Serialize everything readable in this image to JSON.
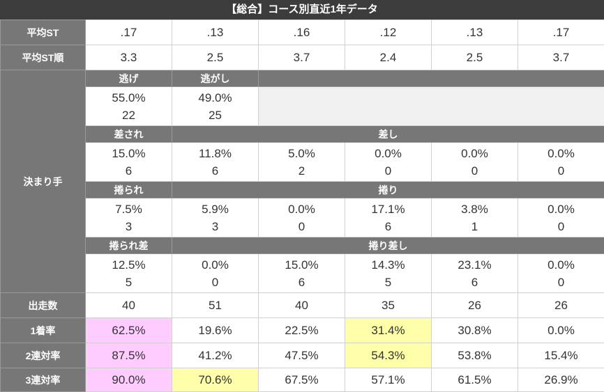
{
  "title": "【総合】コース別直近1年データ",
  "top_rows": [
    {
      "label": "平均ST",
      "values": [
        ".17",
        ".13",
        ".16",
        ".12",
        ".13",
        ".17"
      ]
    },
    {
      "label": "平均ST順",
      "values": [
        "3.3",
        "2.5",
        "3.7",
        "2.4",
        "2.5",
        "3.7"
      ]
    }
  ],
  "kimarite": {
    "label": "決まり手",
    "groups": [
      {
        "headers": [
          {
            "text": "逃げ",
            "span": 1
          },
          {
            "text": "逃がし",
            "span": 1
          }
        ],
        "cells": [
          [
            "55.0%",
            "22"
          ],
          [
            "49.0%",
            "25"
          ]
        ]
      },
      {
        "headers": [
          {
            "text": "差され",
            "span": 1
          },
          {
            "text": "差し",
            "span": 5
          }
        ],
        "cells": [
          [
            "15.0%",
            "6"
          ],
          [
            "11.8%",
            "6"
          ],
          [
            "5.0%",
            "2"
          ],
          [
            "0.0%",
            "0"
          ],
          [
            "0.0%",
            "0"
          ],
          [
            "0.0%",
            "0"
          ]
        ]
      },
      {
        "headers": [
          {
            "text": "捲られ",
            "span": 1
          },
          {
            "text": "捲り",
            "span": 5
          }
        ],
        "cells": [
          [
            "7.5%",
            "3"
          ],
          [
            "5.9%",
            "3"
          ],
          [
            "0.0%",
            "0"
          ],
          [
            "17.1%",
            "6"
          ],
          [
            "3.8%",
            "1"
          ],
          [
            "0.0%",
            "0"
          ]
        ]
      },
      {
        "headers": [
          {
            "text": "捲られ差",
            "span": 1
          },
          {
            "text": "捲り差し",
            "span": 5
          }
        ],
        "cells": [
          [
            "12.5%",
            "5"
          ],
          [
            "0.0%",
            "0"
          ],
          [
            "15.0%",
            "6"
          ],
          [
            "14.3%",
            "5"
          ],
          [
            "23.1%",
            "6"
          ],
          [
            "0.0%",
            "0"
          ]
        ]
      }
    ]
  },
  "bottom_rows": [
    {
      "label": "出走数",
      "values": [
        "40",
        "51",
        "40",
        "35",
        "26",
        "26"
      ]
    },
    {
      "label": "1着率",
      "values": [
        "62.5%",
        "19.6%",
        "22.5%",
        "31.4%",
        "30.8%",
        "0.0%"
      ],
      "highlight": [
        {
          "index": 0,
          "color": "#ffccff"
        },
        {
          "index": 3,
          "color": "#ffffaa"
        }
      ]
    },
    {
      "label": "2連対率",
      "values": [
        "87.5%",
        "41.2%",
        "47.5%",
        "54.3%",
        "53.8%",
        "15.4%"
      ],
      "highlight": [
        {
          "index": 0,
          "color": "#ffccff"
        },
        {
          "index": 3,
          "color": "#ffffaa"
        }
      ]
    },
    {
      "label": "3連対率",
      "values": [
        "90.0%",
        "70.6%",
        "67.5%",
        "57.1%",
        "61.5%",
        "26.9%"
      ],
      "highlight": [
        {
          "index": 0,
          "color": "#ffccff"
        },
        {
          "index": 1,
          "color": "#ffffaa"
        }
      ]
    }
  ]
}
